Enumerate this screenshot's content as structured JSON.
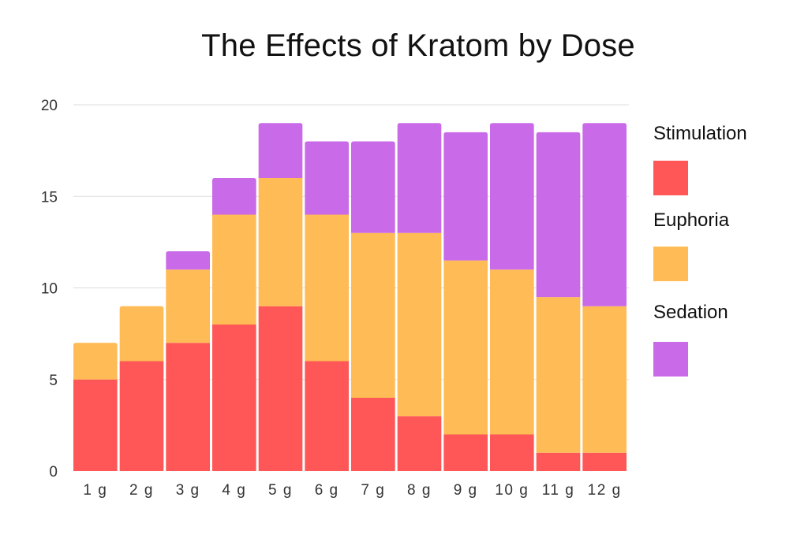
{
  "chart_data": {
    "type": "bar",
    "stacked": true,
    "title": "The Effects of Kratom by Dose",
    "xlabel": "",
    "ylabel": "",
    "ylim": [
      0,
      20
    ],
    "yticks": [
      "0",
      "5",
      "10",
      "15",
      "20"
    ],
    "grid": true,
    "legend_position": "right",
    "categories": [
      "1 g",
      "2 g",
      "3 g",
      "4 g",
      "5 g",
      "6 g",
      "7 g",
      "8 g",
      "9 g",
      "10 g",
      "11 g",
      "12 g"
    ],
    "series": [
      {
        "name": "Stimulation",
        "color": "#ff5757",
        "values": [
          5,
          6,
          7,
          8,
          9,
          6,
          4,
          3,
          2,
          2,
          1,
          1
        ]
      },
      {
        "name": "Euphoria",
        "color": "#ffbb55",
        "values": [
          2,
          3,
          4,
          6,
          7,
          8,
          9,
          10,
          9.5,
          9,
          8.5,
          8
        ]
      },
      {
        "name": "Sedation",
        "color": "#c96ae8",
        "values": [
          0,
          0,
          1,
          2,
          3,
          4,
          5,
          6,
          7,
          8,
          9,
          10
        ]
      }
    ]
  }
}
